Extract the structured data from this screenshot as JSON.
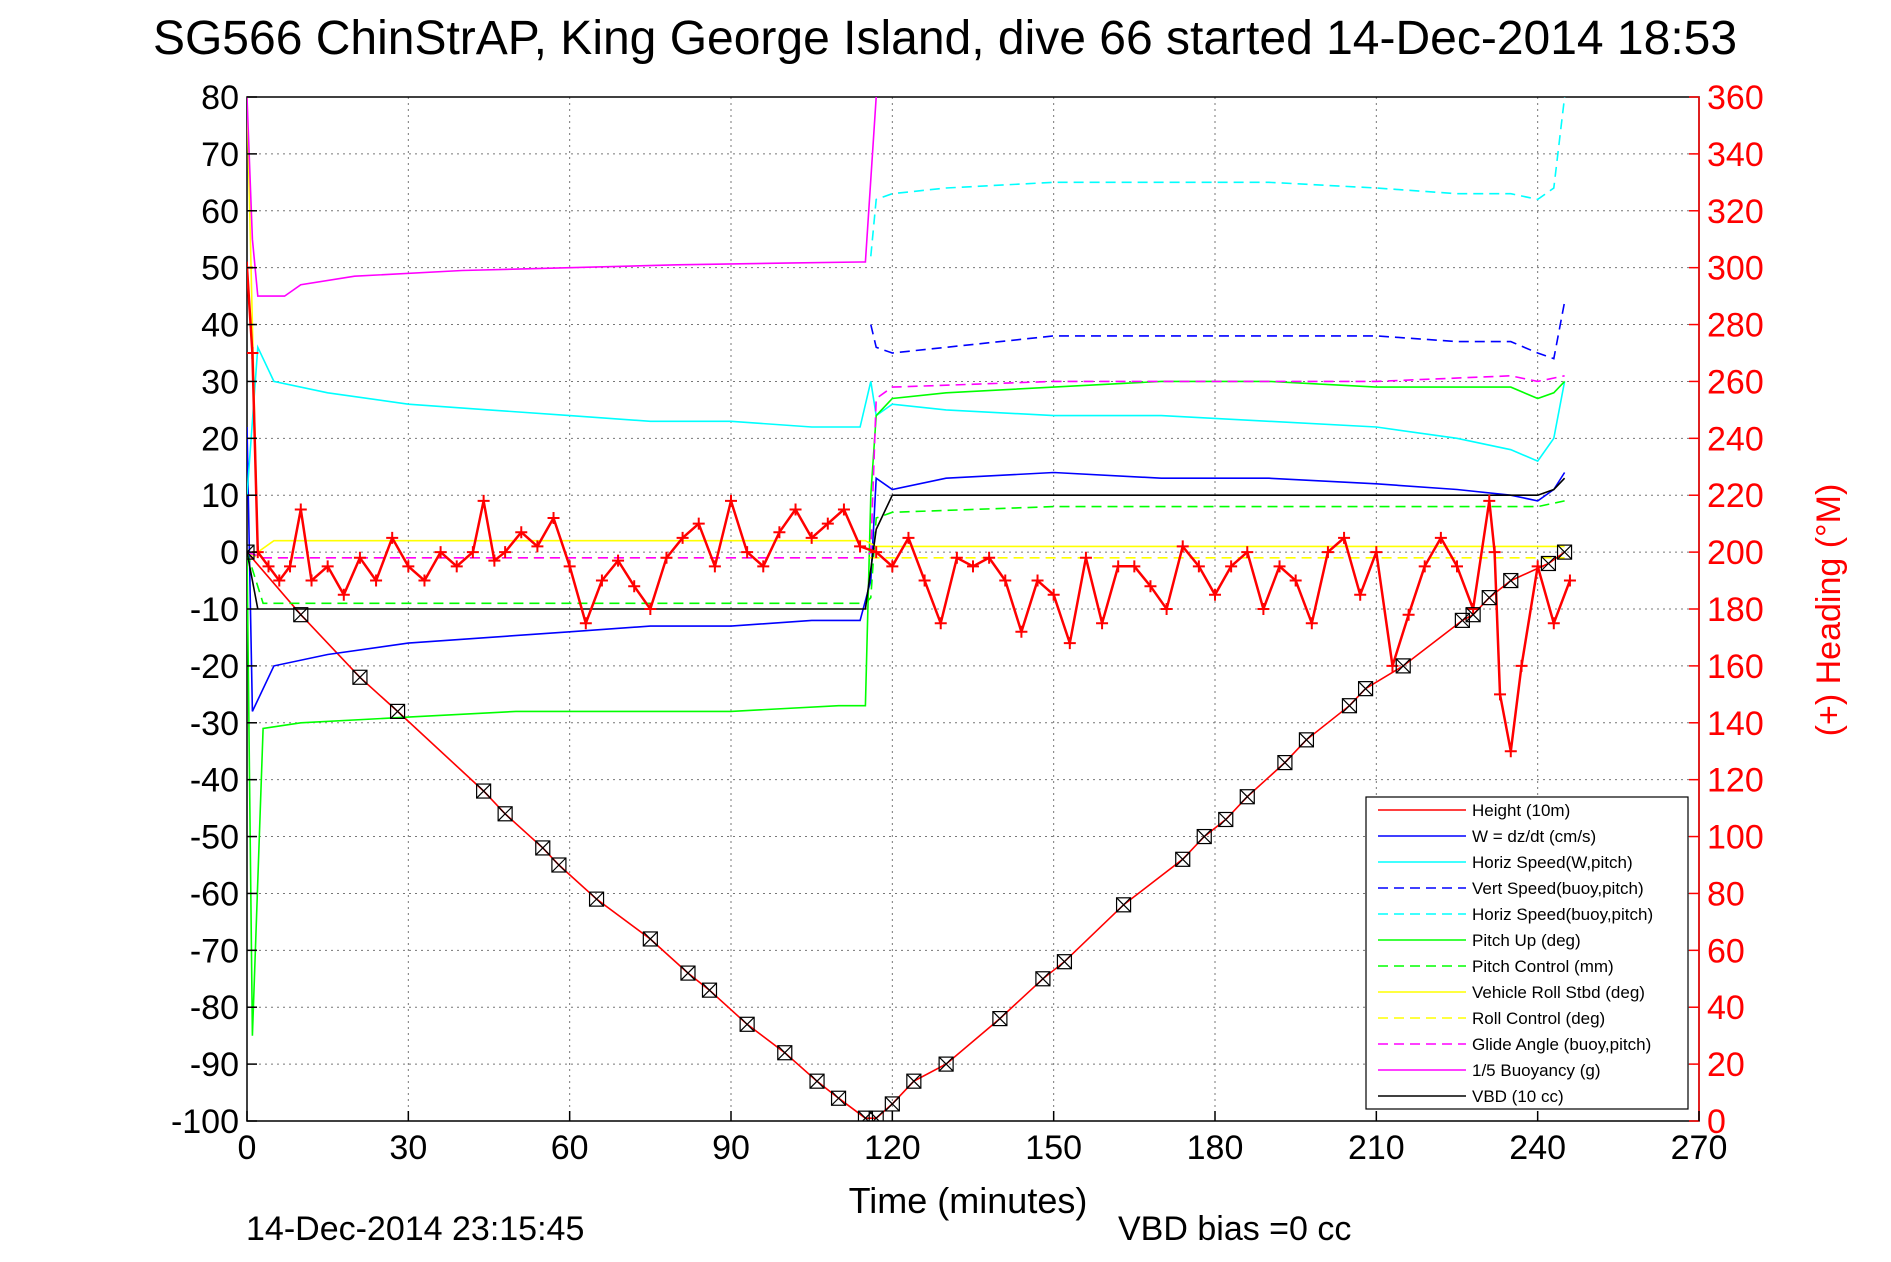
{
  "chart_data": {
    "type": "line",
    "title": "SG566 ChinStrAP, King George Island, dive 66 started 14-Dec-2014 18:53",
    "xlabel": "Time (minutes)",
    "ylabel_right": "(+) Heading (°M)",
    "footer_left": "14-Dec-2014 23:15:45",
    "footer_center": "VBD bias =0 cc",
    "xlim": [
      0,
      270
    ],
    "ylim": [
      -100,
      80
    ],
    "ylim_right": [
      0,
      360
    ],
    "x_ticks": [
      0,
      30,
      60,
      90,
      120,
      150,
      180,
      210,
      240,
      270
    ],
    "y_ticks": [
      80,
      70,
      60,
      50,
      40,
      30,
      20,
      10,
      0,
      -10,
      -20,
      -30,
      -40,
      -50,
      -60,
      -70,
      -80,
      -90,
      -100
    ],
    "y_ticks_right": [
      360,
      340,
      320,
      300,
      280,
      260,
      240,
      220,
      200,
      180,
      160,
      140,
      120,
      100,
      80,
      60,
      40,
      20,
      0
    ],
    "grid": true,
    "legend_position": "lower-right",
    "series": [
      {
        "name": "Height (10m)",
        "color": "#ff0000",
        "dash": "solid",
        "marker": "x-square",
        "x": [
          0,
          10,
          21,
          28,
          44,
          48,
          55,
          58,
          65,
          75,
          82,
          86,
          93,
          100,
          106,
          110,
          115,
          117,
          120,
          124,
          130,
          140,
          148,
          152,
          163,
          174,
          178,
          182,
          186,
          193,
          197,
          205,
          208,
          215,
          226,
          228,
          231,
          235,
          242,
          245
        ],
        "y": [
          0,
          -11,
          -22,
          -28,
          -42,
          -46,
          -52,
          -55,
          -61,
          -68,
          -74,
          -77,
          -83,
          -88,
          -93,
          -96,
          -99.5,
          -99.5,
          -97,
          -93,
          -90,
          -82,
          -75,
          -72,
          -62,
          -54,
          -50,
          -47,
          -43,
          -37,
          -33,
          -27,
          -24,
          -20,
          -12,
          -11,
          -8,
          -5,
          -2,
          0
        ]
      },
      {
        "name": "W = dz/dt (cm/s)",
        "color": "#0000ff",
        "dash": "solid",
        "x": [
          0,
          1,
          5,
          15,
          30,
          45,
          60,
          75,
          90,
          105,
          114,
          116,
          117,
          120,
          130,
          150,
          170,
          190,
          210,
          225,
          235,
          240,
          243,
          245
        ],
        "y": [
          22,
          -28,
          -20,
          -18,
          -16,
          -15,
          -14,
          -13,
          -13,
          -12,
          -12,
          -5,
          13,
          11,
          13,
          14,
          13,
          13,
          12,
          11,
          10,
          9,
          11,
          14
        ]
      },
      {
        "name": "Horiz Speed(W,pitch)",
        "color": "#00ffff",
        "dash": "solid",
        "x": [
          0,
          2,
          5,
          15,
          30,
          45,
          60,
          75,
          90,
          105,
          114,
          116,
          117,
          120,
          130,
          150,
          170,
          190,
          210,
          225,
          235,
          240,
          243,
          245
        ],
        "y": [
          10,
          36,
          30,
          28,
          26,
          25,
          24,
          23,
          23,
          22,
          22,
          30,
          24,
          26,
          25,
          24,
          24,
          23,
          22,
          20,
          18,
          16,
          20,
          30
        ]
      },
      {
        "name": "Vert Speed(buoy,pitch)",
        "color": "#0000ff",
        "dash": "dashed",
        "x": [
          116,
          117,
          120,
          130,
          150,
          170,
          190,
          210,
          225,
          235,
          240,
          243,
          245
        ],
        "y": [
          40,
          36,
          35,
          36,
          38,
          38,
          38,
          38,
          37,
          37,
          35,
          34,
          44
        ]
      },
      {
        "name": "Horiz Speed(buoy,pitch)",
        "color": "#00ffff",
        "dash": "dashed",
        "x": [
          116,
          117,
          120,
          130,
          150,
          170,
          190,
          210,
          225,
          235,
          240,
          243,
          245
        ],
        "y": [
          52,
          62,
          63,
          64,
          65,
          65,
          65,
          64,
          63,
          63,
          62,
          64,
          80
        ]
      },
      {
        "name": "Pitch Up (deg)",
        "color": "#00ff00",
        "dash": "solid",
        "x": [
          0,
          1,
          3,
          10,
          30,
          50,
          70,
          90,
          110,
          115,
          116,
          117,
          120,
          130,
          150,
          170,
          190,
          210,
          225,
          235,
          240,
          243,
          245
        ],
        "y": [
          0,
          -85,
          -31,
          -30,
          -29,
          -28,
          -28,
          -28,
          -27,
          -27,
          10,
          24,
          27,
          28,
          29,
          30,
          30,
          29,
          29,
          29,
          27,
          28,
          30
        ]
      },
      {
        "name": "Pitch Control (mm)",
        "color": "#00ff00",
        "dash": "dashed",
        "x": [
          0,
          3,
          60,
          115,
          116,
          117,
          120,
          150,
          200,
          240,
          245
        ],
        "y": [
          0,
          -9,
          -9,
          -9,
          -8,
          6,
          7,
          8,
          8,
          8,
          9
        ]
      },
      {
        "name": "Vehicle Roll Stbd (deg)",
        "color": "#ffff00",
        "dash": "solid",
        "x": [
          0,
          2,
          5,
          20,
          40,
          60,
          80,
          100,
          115,
          117,
          130,
          150,
          170,
          190,
          210,
          230,
          240,
          245
        ],
        "y": [
          80,
          0,
          2,
          2,
          2,
          2,
          2,
          2,
          2,
          1,
          1,
          1,
          1,
          1,
          1,
          1,
          1,
          1
        ]
      },
      {
        "name": "Roll Control (deg)",
        "color": "#ffff00",
        "dash": "dashed",
        "x": [
          0,
          2,
          20,
          60,
          100,
          115,
          120,
          160,
          200,
          240,
          245
        ],
        "y": [
          0,
          -1,
          -1,
          -1,
          -1,
          -1,
          -1,
          -1,
          -1,
          -1,
          -1
        ]
      },
      {
        "name": "Glide Angle (buoy,pitch)",
        "color": "#ff00ff",
        "dash": "dashed",
        "x": [
          0,
          3,
          60,
          115,
          116,
          117,
          120,
          150,
          180,
          210,
          235,
          240,
          245
        ],
        "y": [
          0,
          -1,
          -1,
          -1,
          0,
          27,
          29,
          30,
          30,
          30,
          31,
          30,
          31
        ]
      },
      {
        "name": "1/5 Buoyancy (g)",
        "color": "#ff00ff",
        "dash": "solid",
        "x": [
          0,
          1,
          2,
          7,
          10,
          20,
          40,
          60,
          80,
          100,
          114,
          115,
          117
        ],
        "y": [
          80,
          55,
          45,
          45,
          47,
          48.5,
          49.5,
          50,
          50.5,
          50.8,
          51,
          51,
          80
        ]
      },
      {
        "name": "VBD (10 cc)",
        "color": "#000000",
        "dash": "solid",
        "x": [
          0,
          2,
          5,
          60,
          115,
          116,
          117,
          120,
          150,
          200,
          240,
          243,
          245
        ],
        "y": [
          0,
          -10,
          -10,
          -10,
          -10,
          -3,
          4,
          10,
          10,
          10,
          10,
          11,
          13
        ]
      }
    ],
    "heading": {
      "name": "Heading",
      "color": "#ff0000",
      "marker": "+",
      "axis": "right",
      "x": [
        0,
        1,
        2,
        4,
        6,
        8,
        10,
        12,
        15,
        18,
        21,
        24,
        27,
        30,
        33,
        36,
        39,
        42,
        44,
        46,
        48,
        51,
        54,
        57,
        60,
        63,
        66,
        69,
        72,
        75,
        78,
        81,
        84,
        87,
        90,
        93,
        96,
        99,
        102,
        105,
        108,
        111,
        114,
        117,
        120,
        123,
        126,
        129,
        132,
        135,
        138,
        141,
        144,
        147,
        150,
        153,
        156,
        159,
        162,
        165,
        168,
        171,
        174,
        177,
        180,
        183,
        186,
        189,
        192,
        195,
        198,
        201,
        204,
        207,
        210,
        213,
        216,
        219,
        222,
        225,
        228,
        231,
        232,
        233,
        235,
        237,
        240,
        243,
        246
      ],
      "y": [
        300,
        270,
        200,
        195,
        190,
        195,
        215,
        190,
        195,
        185,
        198,
        190,
        205,
        195,
        190,
        200,
        195,
        200,
        218,
        197,
        200,
        207,
        202,
        212,
        195,
        175,
        190,
        197,
        188,
        180,
        198,
        205,
        210,
        195,
        218,
        200,
        195,
        207,
        215,
        205,
        210,
        215,
        202,
        200,
        195,
        205,
        190,
        175,
        198,
        195,
        198,
        190,
        172,
        190,
        185,
        168,
        198,
        175,
        195,
        195,
        188,
        180,
        202,
        195,
        185,
        195,
        200,
        180,
        195,
        190,
        175,
        200,
        205,
        185,
        200,
        160,
        178,
        195,
        205,
        195,
        180,
        218,
        200,
        150,
        130,
        160,
        195,
        175,
        190
      ]
    }
  }
}
